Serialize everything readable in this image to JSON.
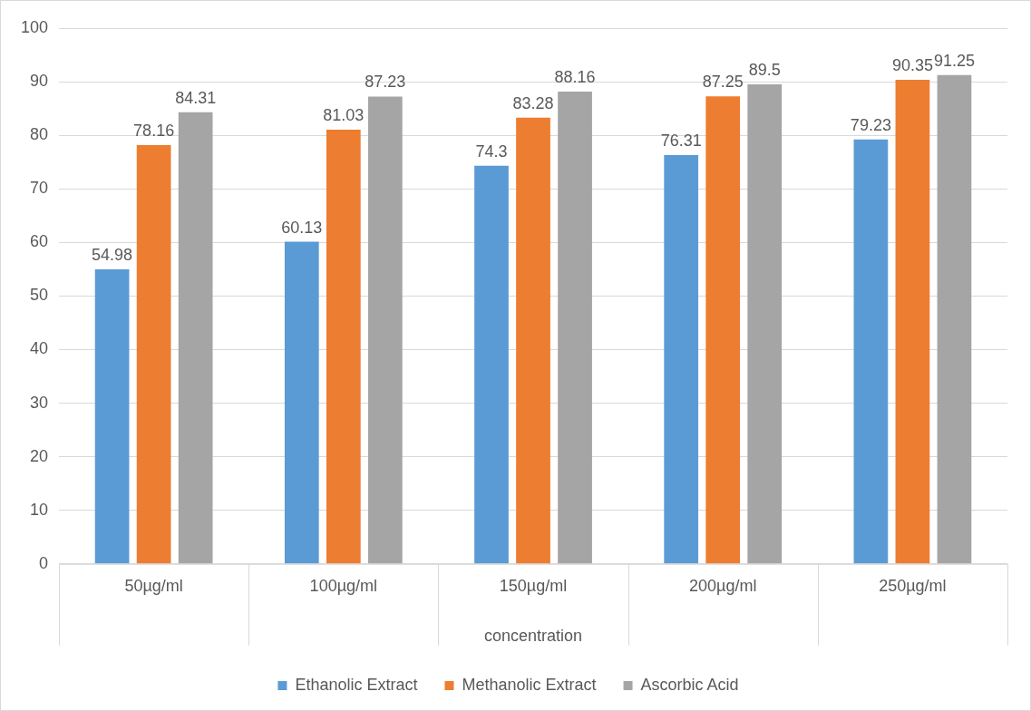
{
  "chart_data": {
    "type": "bar",
    "xlabel": "concentration",
    "categories": [
      "50µg/ml",
      "100µg/ml",
      "150µg/ml",
      "200µg/ml",
      "250µg/ml"
    ],
    "series": [
      {
        "name": "Ethanolic Extract",
        "color": "#5b9bd5",
        "values": [
          54.98,
          60.13,
          74.3,
          76.31,
          79.23
        ]
      },
      {
        "name": "Methanolic Extract",
        "color": "#ed7d31",
        "values": [
          78.16,
          81.03,
          83.28,
          87.25,
          90.35
        ]
      },
      {
        "name": "Ascorbic Acid",
        "color": "#a5a5a5",
        "values": [
          84.31,
          87.23,
          88.16,
          89.5,
          91.25
        ]
      }
    ],
    "ylim": [
      0,
      100
    ],
    "yticks": [
      0,
      10,
      20,
      30,
      40,
      50,
      60,
      70,
      80,
      90,
      100
    ],
    "grid": "y",
    "legend": "bottom",
    "data_labels": true
  }
}
